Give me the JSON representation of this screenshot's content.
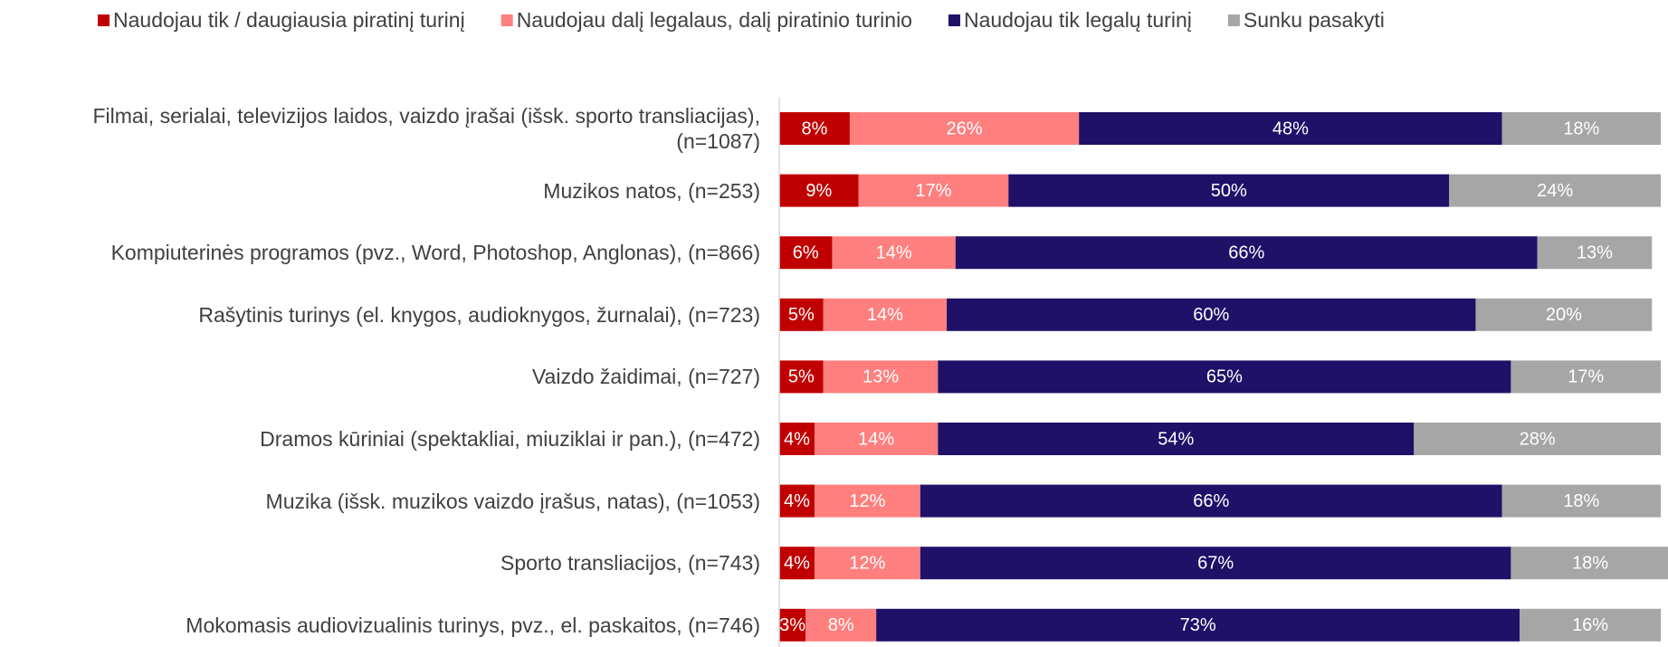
{
  "chart_data": {
    "type": "stacked_barh",
    "categories": [
      "Filmai, serialai, televizijos laidos, vaizdo įrašai (išsk. sporto transliacijas), (n=1087)",
      "Muzikos natos, (n=253)",
      "Kompiuterinės programos (pvz., Word, Photoshop, Anglonas), (n=866)",
      "Rašytinis turinys (el. knygos, audioknygos, žurnalai), (n=723)",
      "Vaizdo žaidimai, (n=727)",
      "Dramos kūriniai (spektakliai, miuziklai ir pan.), (n=472)",
      "Muzika (išsk. muzikos vaizdo įrašus, natas), (n=1053)",
      "Sporto transliacijos, (n=743)",
      "Mokomasis audiovizualinis turinys, pvz., el. paskaitos, (n=746)"
    ],
    "series": [
      {
        "name": "Naudojau tik / daugiausia piratinį turinį",
        "color": "#c00000",
        "values": [
          8,
          9,
          6,
          5,
          5,
          4,
          4,
          4,
          3
        ],
        "value_labels": [
          "8%",
          "9%",
          "6%",
          "5%",
          "5%",
          "4%",
          "4%",
          "4%",
          "3%"
        ]
      },
      {
        "name": "Naudojau dalį legalaus, dalį piratinio turinio",
        "color": "#ff7f7f",
        "values": [
          26,
          17,
          14,
          14,
          13,
          14,
          12,
          12,
          8
        ],
        "value_labels": [
          "26%",
          "17%",
          "14%",
          "14%",
          "13%",
          "14%",
          "12%",
          "12%",
          "8%"
        ]
      },
      {
        "name": "Naudojau tik legalų turinį",
        "color": "#1f1168",
        "values": [
          48,
          50,
          66,
          60,
          65,
          54,
          66,
          67,
          73
        ],
        "value_labels": [
          "48%",
          "50%",
          "66%",
          "60%",
          "65%",
          "54%",
          "66%",
          "67%",
          "73%"
        ]
      },
      {
        "name": "Sunku pasakyti",
        "color": "#a6a6a6",
        "values": [
          18,
          24,
          13,
          20,
          17,
          28,
          18,
          18,
          16
        ],
        "value_labels": [
          "18%",
          "24%",
          "13%",
          "20%",
          "17%",
          "28%",
          "18%",
          "18%",
          "16%"
        ]
      }
    ],
    "xlim": [
      0,
      100
    ],
    "legend": "top"
  }
}
